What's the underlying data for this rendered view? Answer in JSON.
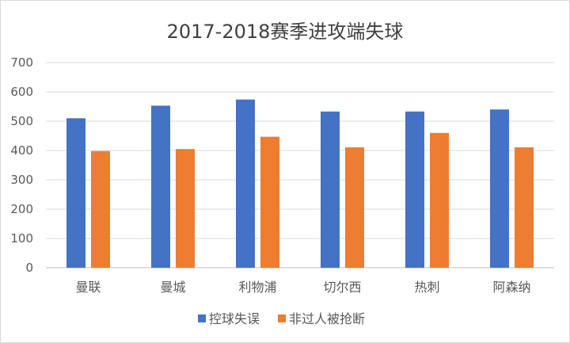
{
  "chart_data": {
    "type": "bar",
    "title": "2017-2018赛季进攻端失球",
    "xlabel": "",
    "ylabel": "",
    "ylim": [
      0,
      700
    ],
    "yticks": [
      0,
      100,
      200,
      300,
      400,
      500,
      600,
      700
    ],
    "grid": true,
    "legend_position": "bottom",
    "categories": [
      "曼联",
      "曼城",
      "利物浦",
      "切尔西",
      "热刺",
      "阿森纳"
    ],
    "series": [
      {
        "name": "控球失误",
        "color": "#4472C4",
        "values": [
          510,
          553,
          574,
          533,
          533,
          540
        ]
      },
      {
        "name": "非过人被抢断",
        "color": "#ED7D31",
        "values": [
          398,
          405,
          447,
          411,
          460,
          411
        ]
      }
    ]
  }
}
